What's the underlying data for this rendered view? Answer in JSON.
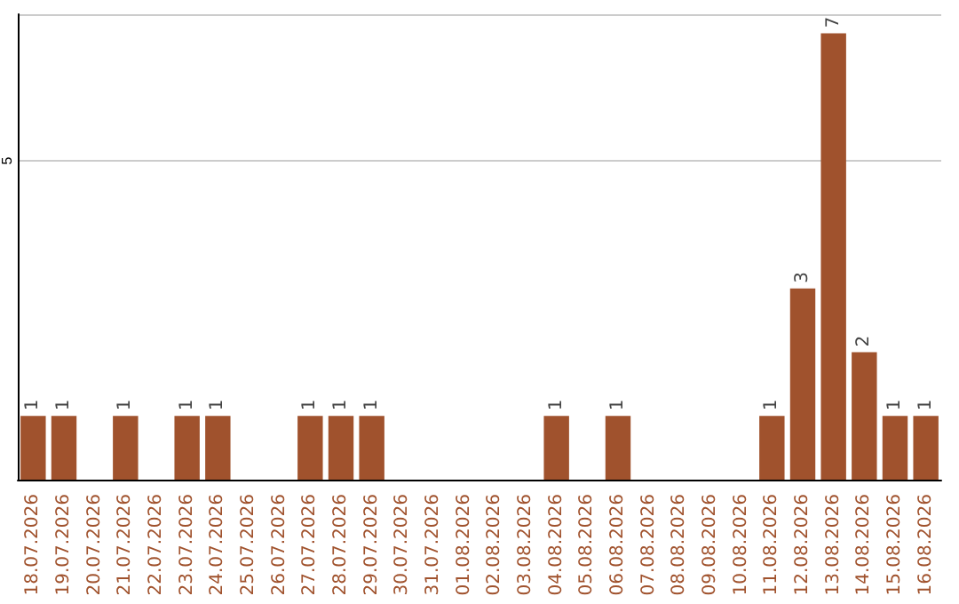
{
  "chart_data": {
    "type": "bar",
    "categories": [
      "18.07.2026",
      "19.07.2026",
      "20.07.2026",
      "21.07.2026",
      "22.07.2026",
      "23.07.2026",
      "24.07.2026",
      "25.07.2026",
      "26.07.2026",
      "27.07.2026",
      "28.07.2026",
      "29.07.2026",
      "30.07.2026",
      "31.07.2026",
      "01.08.2026",
      "02.08.2026",
      "03.08.2026",
      "04.08.2026",
      "05.08.2026",
      "06.08.2026",
      "07.08.2026",
      "08.08.2026",
      "09.08.2026",
      "10.08.2026",
      "11.08.2026",
      "12.08.2026",
      "13.08.2026",
      "14.08.2026",
      "15.08.2026",
      "16.08.2026"
    ],
    "values": [
      1,
      1,
      0,
      1,
      0,
      1,
      1,
      0,
      0,
      1,
      1,
      1,
      0,
      0,
      0,
      0,
      0,
      1,
      0,
      1,
      0,
      0,
      0,
      0,
      1,
      3,
      7,
      2,
      1,
      1
    ],
    "value_labels": [
      "1",
      "1",
      null,
      "1",
      null,
      "1",
      "1",
      null,
      null,
      "1",
      "1",
      "1",
      null,
      null,
      null,
      null,
      null,
      "1",
      null,
      "1",
      null,
      null,
      null,
      null,
      "1",
      "3",
      "7",
      "2",
      "1",
      "1"
    ],
    "color": "#a0522d",
    "ylim": [
      0,
      7.3
    ],
    "yticks": [
      5
    ],
    "grid": "y"
  }
}
